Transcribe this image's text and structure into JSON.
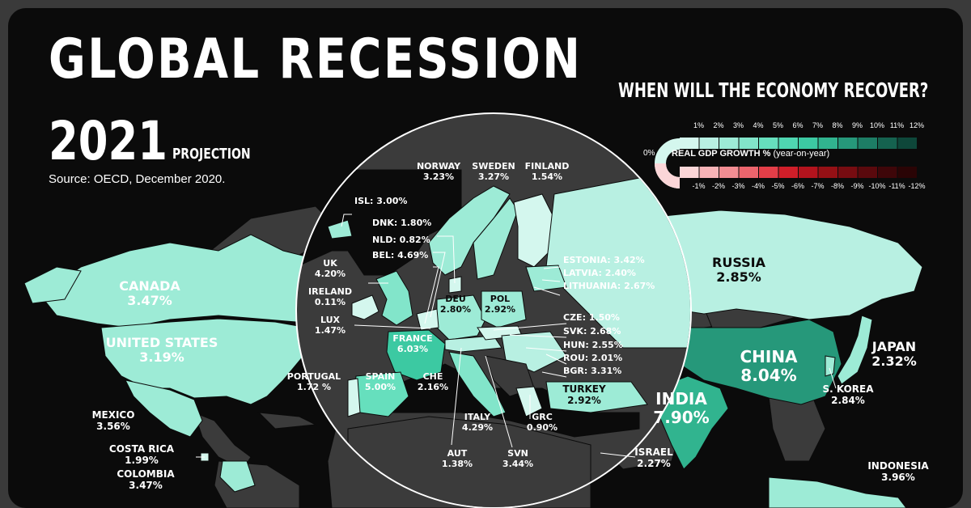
{
  "header": {
    "title": "GLOBAL RECESSION",
    "subtitle": "WHEN WILL THE ECONOMY RECOVER?",
    "year": "2021",
    "projection": "PROJECTION",
    "source": "Source: OECD, December 2020."
  },
  "legend": {
    "title": "REAL GDP GROWTH %",
    "title_note": "(year-on-year)",
    "zero_label": "0%",
    "positive_ticks": [
      "1%",
      "2%",
      "3%",
      "4%",
      "5%",
      "6%",
      "7%",
      "8%",
      "9%",
      "10%",
      "11%",
      "12%"
    ],
    "negative_ticks": [
      "-1%",
      "-2%",
      "-3%",
      "-4%",
      "-5%",
      "-6%",
      "-7%",
      "-8%",
      "-9%",
      "-10%",
      "-11%",
      "-12%"
    ],
    "positive_colors": [
      "#d4f7ee",
      "#b8f0e2",
      "#9debd6",
      "#82e5ca",
      "#66dfbd",
      "#4fd6b1",
      "#3cc9a2",
      "#31b48f",
      "#26987a",
      "#1d7d65",
      "#15624f",
      "#0e473a"
    ],
    "negative_colors": [
      "#fbd6d8",
      "#f7b3b7",
      "#f28d93",
      "#ec656d",
      "#e43e48",
      "#d01e29",
      "#b3131d",
      "#951015",
      "#770c11",
      "#5a090d",
      "#3e0609",
      "#2a0405"
    ]
  },
  "countries": {
    "canada": {
      "name": "CANADA",
      "value": "3.47%"
    },
    "united_states": {
      "name": "UNITED STATES",
      "value": "3.19%"
    },
    "mexico": {
      "name": "MEXICO",
      "value": "3.56%"
    },
    "costa_rica": {
      "name": "COSTA RICA",
      "value": "1.99%"
    },
    "colombia": {
      "name": "COLOMBIA",
      "value": "3.47%"
    },
    "russia": {
      "name": "RUSSIA",
      "value": "2.85%"
    },
    "china": {
      "name": "CHINA",
      "value": "8.04%"
    },
    "india": {
      "name": "INDIA",
      "value": "7.90%"
    },
    "japan": {
      "name": "JAPAN",
      "value": "2.32%"
    },
    "south_korea": {
      "name": "S. KOREA",
      "value": "2.84%"
    },
    "indonesia": {
      "name": "INDONESIA",
      "value": "3.96%"
    },
    "israel": {
      "name": "ISRAEL",
      "value": "2.27%"
    },
    "turkey": {
      "name": "TURKEY",
      "value": "2.92%"
    },
    "norway": {
      "name": "NORWAY",
      "value": "3.23%"
    },
    "sweden": {
      "name": "SWEDEN",
      "value": "3.27%"
    },
    "finland": {
      "name": "FINLAND",
      "value": "1.54%"
    },
    "iceland": {
      "text": "ISL: 3.00%"
    },
    "denmark": {
      "text": "DNK: 1.80%"
    },
    "netherlands": {
      "text": "NLD: 0.82%"
    },
    "belgium": {
      "text": "BEL: 4.69%"
    },
    "uk": {
      "name": "UK",
      "value": "4.20%"
    },
    "ireland": {
      "name": "IRELAND",
      "value": "0.11%"
    },
    "luxembourg": {
      "name": "LUX",
      "value": "1.47%"
    },
    "portugal": {
      "name": "PORTUGAL",
      "value": "1.72 %"
    },
    "spain": {
      "name": "SPAIN",
      "value": "5.00%"
    },
    "france": {
      "name": "FRANCE",
      "value": "6.03%"
    },
    "switzerland": {
      "name": "CHE",
      "value": "2.16%"
    },
    "germany": {
      "name": "DEU",
      "value": "2.80%"
    },
    "poland": {
      "name": "POL",
      "value": "2.92%"
    },
    "italy": {
      "name": "ITALY",
      "value": "4.29%"
    },
    "austria": {
      "name": "AUT",
      "value": "1.38%"
    },
    "slovenia": {
      "name": "SVN",
      "value": "3.44%"
    },
    "greece": {
      "name": "GRC",
      "value": "0.90%"
    },
    "estonia": {
      "text": "ESTONIA: 3.42%"
    },
    "latvia": {
      "text": "LATVIA: 2.40%"
    },
    "lithuania": {
      "text": "LITHUANIA: 2.67%"
    },
    "czechia": {
      "text": "CZE: 1.50%"
    },
    "slovakia": {
      "text": "SVK: 2.68%"
    },
    "hungary": {
      "text": "HUN: 2.55%"
    },
    "romania": {
      "text": "ROU: 2.01%"
    },
    "bulgaria": {
      "text": "BGR: 3.31%"
    }
  },
  "colors": {
    "background": "#0b0b0b",
    "no_data": "#3b3b3b",
    "text": "#ffffff"
  }
}
